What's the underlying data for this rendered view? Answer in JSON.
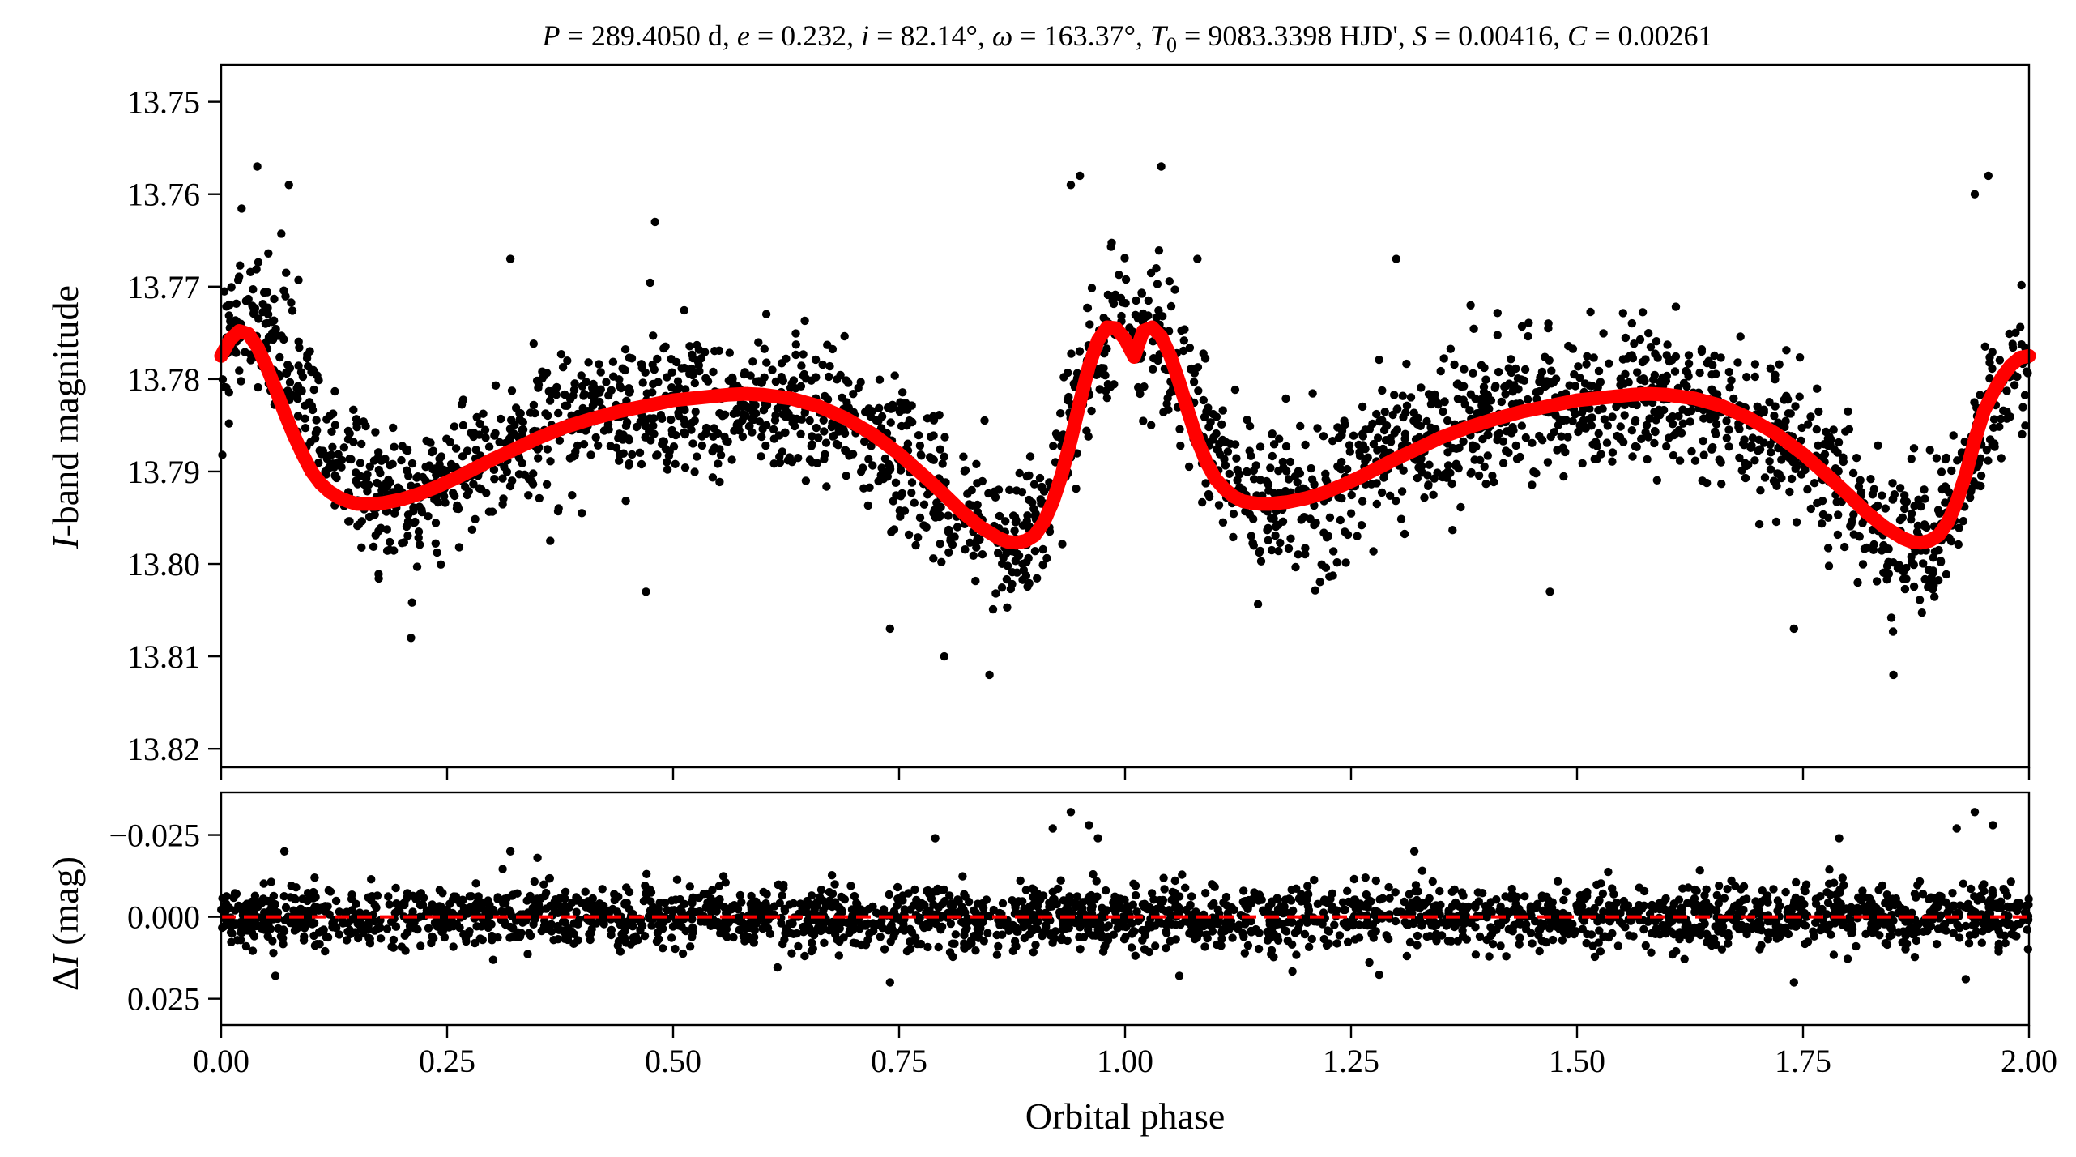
{
  "chart_data": [
    {
      "panel": "top",
      "type": "scatter",
      "title": "P = 289.4050 d, e = 0.232, i = 82.14°, ω = 163.37°, T0 = 9083.3398 HJD', S = 0.00416, C = 0.00261",
      "title_parts": {
        "p": "P",
        "p_val": " = 289.4050 d, ",
        "e": "e",
        "e_val": " = 0.232, ",
        "i": "i",
        "i_val": " = 82.14°, ",
        "w": "ω",
        "w_val": " = 163.37°, ",
        "t": "T",
        "t_sub": "0",
        "t_val": " = 9083.3398 HJD', ",
        "s": "S",
        "s_val": " = 0.00416, ",
        "c": "C",
        "c_val": " = 0.00261"
      },
      "xlabel": "",
      "ylabel_italic": "I",
      "ylabel_rest": "-band magnitude",
      "xlim": [
        0.0,
        2.0
      ],
      "ylim": [
        13.822,
        13.746
      ],
      "y_inverted": true,
      "yticks": [
        "13.75",
        "13.76",
        "13.77",
        "13.78",
        "13.79",
        "13.80",
        "13.81",
        "13.82"
      ],
      "ytick_values": [
        13.75,
        13.76,
        13.77,
        13.78,
        13.79,
        13.8,
        13.81,
        13.82
      ],
      "xticks_values": [
        0.0,
        0.25,
        0.5,
        0.75,
        1.0,
        1.25,
        1.5,
        1.75,
        2.0
      ],
      "series": [
        {
          "role": "observed",
          "color": "#000000",
          "x": [
            0.0,
            0.02,
            0.04,
            0.06,
            0.08,
            0.1,
            0.12,
            0.14,
            0.16,
            0.18,
            0.2,
            0.22,
            0.25,
            0.3,
            0.35,
            0.4,
            0.45,
            0.5,
            0.55,
            0.6,
            0.65,
            0.7,
            0.75,
            0.8,
            0.83,
            0.86,
            0.88,
            0.9,
            0.92,
            0.94,
            0.96,
            0.98,
            1.0,
            1.02,
            1.04,
            1.06,
            1.08,
            1.1,
            1.12,
            1.14,
            1.16,
            1.18,
            1.2,
            1.22,
            1.25,
            1.3,
            1.35,
            1.4,
            1.45,
            1.5,
            1.55,
            1.6,
            1.65,
            1.7,
            1.75,
            1.8,
            1.83,
            1.86,
            1.88,
            1.9,
            1.92,
            1.94,
            1.96,
            1.98,
            2.0
          ],
          "y": [
            13.778,
            13.775,
            13.774,
            13.776,
            13.779,
            13.783,
            13.787,
            13.79,
            13.792,
            13.793,
            13.793,
            13.792,
            13.791,
            13.788,
            13.786,
            13.784,
            13.783,
            13.782,
            13.782,
            13.782,
            13.783,
            13.785,
            13.788,
            13.792,
            13.795,
            13.797,
            13.798,
            13.796,
            13.791,
            13.785,
            13.779,
            13.775,
            13.775,
            13.775,
            13.776,
            13.779,
            13.783,
            13.787,
            13.79,
            13.792,
            13.793,
            13.793,
            13.793,
            13.792,
            13.791,
            13.788,
            13.786,
            13.784,
            13.783,
            13.782,
            13.782,
            13.782,
            13.783,
            13.785,
            13.788,
            13.792,
            13.795,
            13.797,
            13.798,
            13.797,
            13.793,
            13.788,
            13.783,
            13.779,
            13.777
          ],
          "scatter_half_width": 0.0085
        },
        {
          "role": "model",
          "color": "#ff0000",
          "x": [
            0.0,
            0.01,
            0.02,
            0.03,
            0.04,
            0.05,
            0.06,
            0.07,
            0.08,
            0.09,
            0.1,
            0.11,
            0.12,
            0.13,
            0.14,
            0.15,
            0.16,
            0.17,
            0.18,
            0.19,
            0.2,
            0.22,
            0.24,
            0.26,
            0.28,
            0.3,
            0.32,
            0.35,
            0.38,
            0.41,
            0.44,
            0.47,
            0.5,
            0.53,
            0.56,
            0.58,
            0.6,
            0.63,
            0.66,
            0.69,
            0.72,
            0.75,
            0.78,
            0.8,
            0.82,
            0.84,
            0.86,
            0.87,
            0.88,
            0.89,
            0.9,
            0.91,
            0.92,
            0.93,
            0.94,
            0.95,
            0.96,
            0.97,
            0.98,
            0.99,
            1.0,
            1.01,
            1.02,
            1.03,
            1.04,
            1.05,
            1.06,
            1.07,
            1.08,
            1.09,
            1.1,
            1.11,
            1.12,
            1.13,
            1.14,
            1.15,
            1.16,
            1.17,
            1.18,
            1.19,
            1.2,
            1.22,
            1.24,
            1.26,
            1.28,
            1.3,
            1.32,
            1.35,
            1.38,
            1.41,
            1.44,
            1.47,
            1.5,
            1.53,
            1.56,
            1.58,
            1.6,
            1.63,
            1.66,
            1.69,
            1.72,
            1.75,
            1.78,
            1.8,
            1.82,
            1.84,
            1.86,
            1.87,
            1.88,
            1.89,
            1.9,
            1.91,
            1.92,
            1.93,
            1.94,
            1.95,
            1.96,
            1.97,
            1.98,
            1.99,
            2.0
          ],
          "y": [
            13.7775,
            13.7757,
            13.7748,
            13.7751,
            13.7765,
            13.7786,
            13.781,
            13.7836,
            13.786,
            13.7881,
            13.79,
            13.7913,
            13.7922,
            13.7928,
            13.7932,
            13.7935,
            13.7935,
            13.7935,
            13.7934,
            13.7932,
            13.793,
            13.7924,
            13.7916,
            13.7907,
            13.7897,
            13.7887,
            13.7878,
            13.7864,
            13.7852,
            13.7843,
            13.7835,
            13.7829,
            13.7823,
            13.782,
            13.7817,
            13.7816,
            13.7817,
            13.7821,
            13.7829,
            13.7842,
            13.7859,
            13.7881,
            13.7907,
            13.7925,
            13.7944,
            13.796,
            13.7972,
            13.7976,
            13.7977,
            13.7975,
            13.7969,
            13.7955,
            13.7933,
            13.7903,
            13.7866,
            13.7825,
            13.7786,
            13.7758,
            13.7744,
            13.7745,
            13.7757,
            13.7776,
            13.7748,
            13.7744,
            13.7754,
            13.7775,
            13.7804,
            13.7836,
            13.7866,
            13.789,
            13.7908,
            13.7919,
            13.7927,
            13.7932,
            13.7934,
            13.7935,
            13.7935,
            13.7934,
            13.7933,
            13.7931,
            13.7929,
            13.7923,
            13.7915,
            13.7906,
            13.7896,
            13.7886,
            13.7877,
            13.7863,
            13.7852,
            13.7843,
            13.7835,
            13.7829,
            13.7823,
            13.782,
            13.7817,
            13.7816,
            13.7817,
            13.7821,
            13.7829,
            13.7842,
            13.7859,
            13.7881,
            13.7907,
            13.7925,
            13.7944,
            13.796,
            13.7972,
            13.7976,
            13.7977,
            13.7975,
            13.7969,
            13.7955,
            13.7933,
            13.7903,
            13.7866,
            13.7835,
            13.7815,
            13.7798,
            13.7785,
            13.7777,
            13.7775
          ]
        }
      ],
      "outliers": [
        {
          "x": 0.04,
          "y": 13.757
        },
        {
          "x": 0.075,
          "y": 13.759
        },
        {
          "x": 0.21,
          "y": 13.808
        },
        {
          "x": 0.32,
          "y": 13.767
        },
        {
          "x": 0.47,
          "y": 13.803
        },
        {
          "x": 0.48,
          "y": 13.763
        },
        {
          "x": 0.74,
          "y": 13.807
        },
        {
          "x": 0.8,
          "y": 13.81
        },
        {
          "x": 0.85,
          "y": 13.812
        },
        {
          "x": 0.94,
          "y": 13.759
        },
        {
          "x": 0.95,
          "y": 13.758
        },
        {
          "x": 1.04,
          "y": 13.757
        },
        {
          "x": 1.08,
          "y": 13.767
        },
        {
          "x": 1.3,
          "y": 13.767
        },
        {
          "x": 1.47,
          "y": 13.803
        },
        {
          "x": 1.74,
          "y": 13.807
        },
        {
          "x": 1.85,
          "y": 13.812
        },
        {
          "x": 1.94,
          "y": 13.76
        },
        {
          "x": 1.955,
          "y": 13.758
        },
        {
          "x": 1.985,
          "y": 13.775
        }
      ]
    },
    {
      "panel": "bottom",
      "type": "scatter",
      "xlabel": "Orbital phase",
      "ylabel_prefix": "Δ",
      "ylabel_italic": "I",
      "ylabel_rest": " (mag)",
      "xlim": [
        0.0,
        2.0
      ],
      "ylim": [
        0.033,
        -0.038
      ],
      "y_inverted": true,
      "yticks": [
        "−0.025",
        "0.000",
        "0.025"
      ],
      "ytick_values": [
        -0.025,
        0.0,
        0.025
      ],
      "xticks": [
        "0.00",
        "0.25",
        "0.50",
        "0.75",
        "1.00",
        "1.25",
        "1.50",
        "1.75",
        "2.00"
      ],
      "xtick_values": [
        0.0,
        0.25,
        0.5,
        0.75,
        1.0,
        1.25,
        1.5,
        1.75,
        2.0
      ],
      "series": [
        {
          "role": "residuals",
          "color": "#000000",
          "center": 0.0,
          "scatter_half_width": 0.0085
        },
        {
          "role": "zero-line",
          "color": "#ff0000",
          "y": 0.0
        }
      ],
      "outliers": [
        {
          "x": 0.07,
          "y": -0.02
        },
        {
          "x": 0.06,
          "y": 0.018
        },
        {
          "x": 0.32,
          "y": -0.02
        },
        {
          "x": 0.79,
          "y": -0.024
        },
        {
          "x": 0.92,
          "y": -0.027
        },
        {
          "x": 0.94,
          "y": -0.032
        },
        {
          "x": 0.96,
          "y": -0.028
        },
        {
          "x": 0.97,
          "y": -0.024
        },
        {
          "x": 1.06,
          "y": 0.018
        },
        {
          "x": 1.32,
          "y": -0.02
        },
        {
          "x": 1.79,
          "y": -0.024
        },
        {
          "x": 1.92,
          "y": -0.027
        },
        {
          "x": 1.94,
          "y": -0.032
        },
        {
          "x": 1.96,
          "y": -0.028
        },
        {
          "x": 1.93,
          "y": 0.019
        },
        {
          "x": 0.74,
          "y": 0.02
        },
        {
          "x": 1.74,
          "y": 0.02
        },
        {
          "x": 0.35,
          "y": -0.018
        }
      ]
    }
  ]
}
